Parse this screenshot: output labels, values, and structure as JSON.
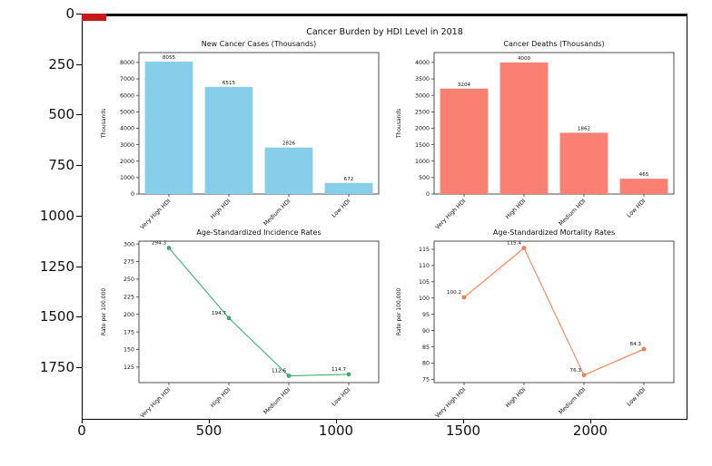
{
  "figure": {
    "suptitle": "Cancer Burden by HDI Level in 2018"
  },
  "outer_axes": {
    "y_ticks": [
      {
        "label": "0",
        "u": 0
      },
      {
        "label": "250",
        "u": 250
      },
      {
        "label": "500",
        "u": 500
      },
      {
        "label": "750",
        "u": 750
      },
      {
        "label": "1000",
        "u": 1000
      },
      {
        "label": "1250",
        "u": 1250
      },
      {
        "label": "1500",
        "u": 1500
      },
      {
        "label": "1750",
        "u": 1750
      }
    ],
    "x_ticks": [
      {
        "label": "0",
        "u": 0
      },
      {
        "label": "500",
        "u": 500
      },
      {
        "label": "1000",
        "u": 1000
      },
      {
        "label": "1500",
        "u": 1500
      },
      {
        "label": "2000",
        "u": 2000
      }
    ]
  },
  "chart_data": [
    {
      "type": "bar",
      "title": "New Cancer Cases (Thousands)",
      "ylabel": "Thousands",
      "categories": [
        "Very High HDI",
        "High HDI",
        "Medium HDI",
        "Low HDI"
      ],
      "values": [
        8055,
        6515,
        2826,
        672
      ],
      "value_labels": [
        "8055",
        "6515",
        "2826",
        "672"
      ],
      "color": "#87CEEB",
      "yticks": [
        0,
        1000,
        2000,
        3000,
        4000,
        5000,
        6000,
        7000,
        8000
      ],
      "ylim": [
        0,
        8600
      ],
      "grid": false,
      "legend": "none"
    },
    {
      "type": "bar",
      "title": "Cancer Deaths (Thousands)",
      "ylabel": "Thousands",
      "categories": [
        "Very High HDI",
        "High HDI",
        "Medium HDI",
        "Low HDI"
      ],
      "values": [
        3204,
        4000,
        1862,
        465
      ],
      "value_labels": [
        "3204",
        "4000",
        "1862",
        "465"
      ],
      "color": "#FA8072",
      "yticks": [
        0,
        500,
        1000,
        1500,
        2000,
        2500,
        3000,
        3500,
        4000
      ],
      "ylim": [
        0,
        4300
      ],
      "grid": false,
      "legend": "none"
    },
    {
      "type": "line",
      "title": "Age-Standardized Incidence Rates",
      "ylabel": "Rate per 100,000",
      "categories": [
        "Very High HDI",
        "High HDI",
        "Medium HDI",
        "Low HDI"
      ],
      "values": [
        294.3,
        194.7,
        112.6,
        114.7
      ],
      "value_labels": [
        "294.3",
        "194.7",
        "112.6",
        "114.7"
      ],
      "color": "#3CB371",
      "marker_stroke": "#2E8B57",
      "yticks": [
        125,
        150,
        175,
        200,
        225,
        250,
        275,
        300
      ],
      "ylim": [
        103,
        304
      ],
      "grid": false,
      "legend": "none"
    },
    {
      "type": "line",
      "title": "Age-Standardized Mortality Rates",
      "ylabel": "Rate per 100,000",
      "categories": [
        "Very High HDI",
        "High HDI",
        "Medium HDI",
        "Low HDI"
      ],
      "values": [
        100.2,
        115.4,
        76.3,
        84.3
      ],
      "value_labels": [
        "100.2",
        "115.4",
        "76.3",
        "84.3"
      ],
      "color": "#FF7F50",
      "marker_stroke": "#E8603C",
      "yticks": [
        75,
        80,
        85,
        90,
        95,
        100,
        105,
        110,
        115
      ],
      "ylim": [
        74,
        117.5
      ],
      "grid": false,
      "legend": "none"
    }
  ]
}
